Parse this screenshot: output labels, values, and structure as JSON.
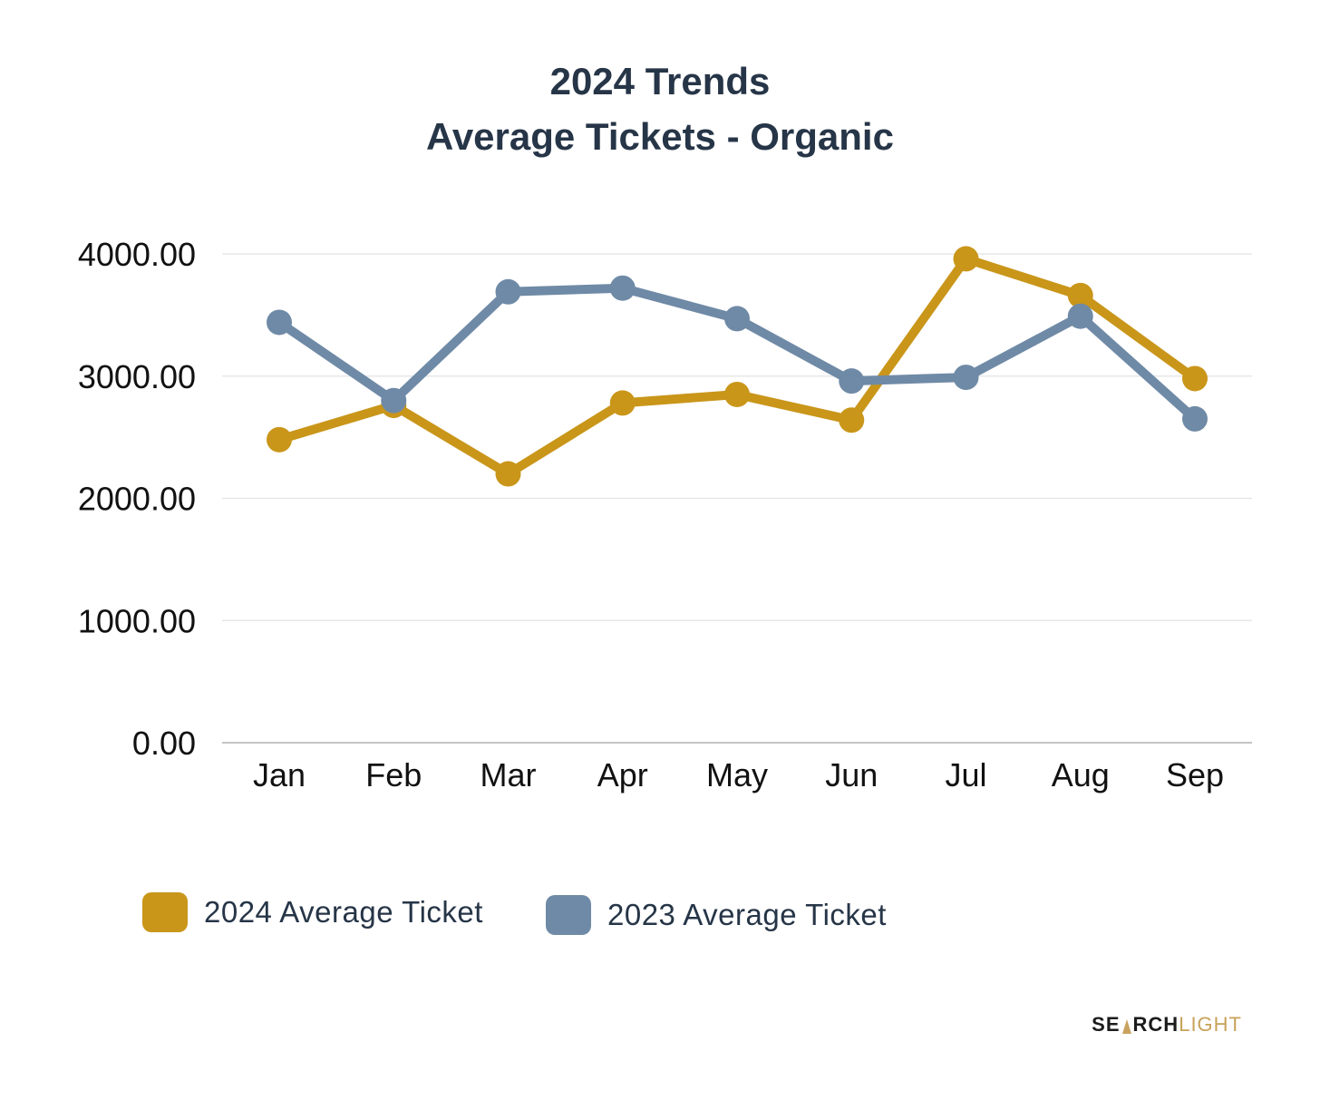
{
  "chart_data": {
    "type": "line",
    "title": "2024 Trends",
    "subtitle": "Average Tickets - Organic",
    "categories": [
      "Jan",
      "Feb",
      "Mar",
      "Apr",
      "May",
      "Jun",
      "Jul",
      "Aug",
      "Sep"
    ],
    "y_ticks": [
      "0.00",
      "1000.00",
      "2000.00",
      "3000.00",
      "4000.00"
    ],
    "ylim": [
      0,
      4000
    ],
    "grid": true,
    "legend_position": "bottom",
    "series": [
      {
        "name": "2024 Average Ticket",
        "color": "#C9961A",
        "values": [
          2480,
          2760,
          2200,
          2780,
          2850,
          2640,
          3960,
          3660,
          2980
        ]
      },
      {
        "name": "2023 Average Ticket",
        "color": "#6F8AA6",
        "values": [
          3440,
          2800,
          3690,
          3720,
          3470,
          2960,
          2990,
          3490,
          2650
        ]
      }
    ]
  },
  "brand": {
    "part1": "SE",
    "part2": "RCH",
    "part3": "LIGHT"
  }
}
